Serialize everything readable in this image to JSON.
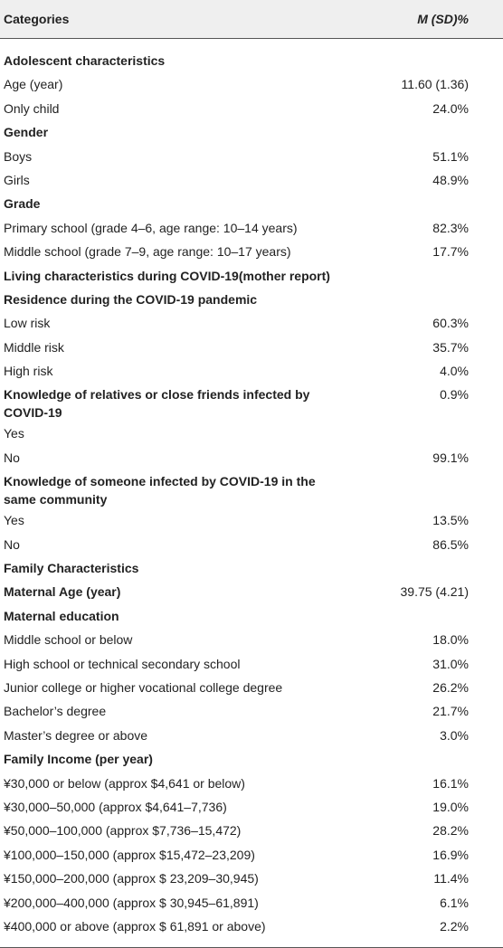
{
  "header": {
    "label": "Categories",
    "value": "M (SD)%"
  },
  "rows": [
    {
      "label": "Adolescent characteristics",
      "bold": true
    },
    {
      "label": "Age (year)",
      "value": "11.60 (1.36)"
    },
    {
      "label": "Only child",
      "value": "24.0%"
    },
    {
      "label": "Gender",
      "bold": true
    },
    {
      "label": "Boys",
      "value": "51.1%"
    },
    {
      "label": "Girls",
      "value": "48.9%"
    },
    {
      "label": "Grade",
      "bold": true
    },
    {
      "label": "Primary school (grade 4–6, age range: 10–14 years)",
      "value": "82.3%"
    },
    {
      "label": "Middle school (grade 7–9, age range: 10–17 years)",
      "value": "17.7%"
    },
    {
      "label": "Living characteristics during COVID-19(mother report)",
      "bold": true
    },
    {
      "label": "Residence during the COVID-19 pandemic",
      "bold": true
    },
    {
      "label": "Low risk",
      "value": "60.3%"
    },
    {
      "label": "Middle risk",
      "value": "35.7%"
    },
    {
      "label": "High risk",
      "value": "4.0%"
    },
    {
      "label": "Knowledge of relatives or close friends infected by COVID-19",
      "value": "0.9%",
      "bold": true
    },
    {
      "label": "Yes"
    },
    {
      "label": "No",
      "value": "99.1%"
    },
    {
      "label": "Knowledge of someone infected by COVID-19 in the same community",
      "bold": true
    },
    {
      "label": "Yes",
      "value": "13.5%"
    },
    {
      "label": "No",
      "value": "86.5%"
    },
    {
      "label": "Family Characteristics",
      "bold": true
    },
    {
      "label": "Maternal Age (year)",
      "value": "39.75 (4.21)",
      "bold": true
    },
    {
      "label": "Maternal education",
      "bold": true
    },
    {
      "label": "Middle school or below",
      "value": "18.0%"
    },
    {
      "label": "High school or technical secondary school",
      "value": "31.0%"
    },
    {
      "label": "Junior college or higher vocational college degree",
      "value": "26.2%"
    },
    {
      "label": "Bachelor’s degree",
      "value": "21.7%"
    },
    {
      "label": "Master’s degree or above",
      "value": "3.0%"
    },
    {
      "label": "Family Income (per year)",
      "bold": true
    },
    {
      "label": "¥30,000 or below (approx $4,641 or below)",
      "value": "16.1%"
    },
    {
      "label": "¥30,000–50,000 (approx $4,641–7,736)",
      "value": "19.0%"
    },
    {
      "label": "¥50,000–100,000 (approx $7,736–15,472)",
      "value": "28.2%"
    },
    {
      "label": "¥100,000–150,000 (approx $15,472–23,209)",
      "value": "16.9%"
    },
    {
      "label": "¥150,000–200,000 (approx $ 23,209–30,945)",
      "value": "11.4%"
    },
    {
      "label": "¥200,000–400,000 (approx $ 30,945–61,891)",
      "value": "6.1%"
    },
    {
      "label": "¥400,000 or above (approx $ 61,891 or above)",
      "value": "2.2%"
    }
  ]
}
